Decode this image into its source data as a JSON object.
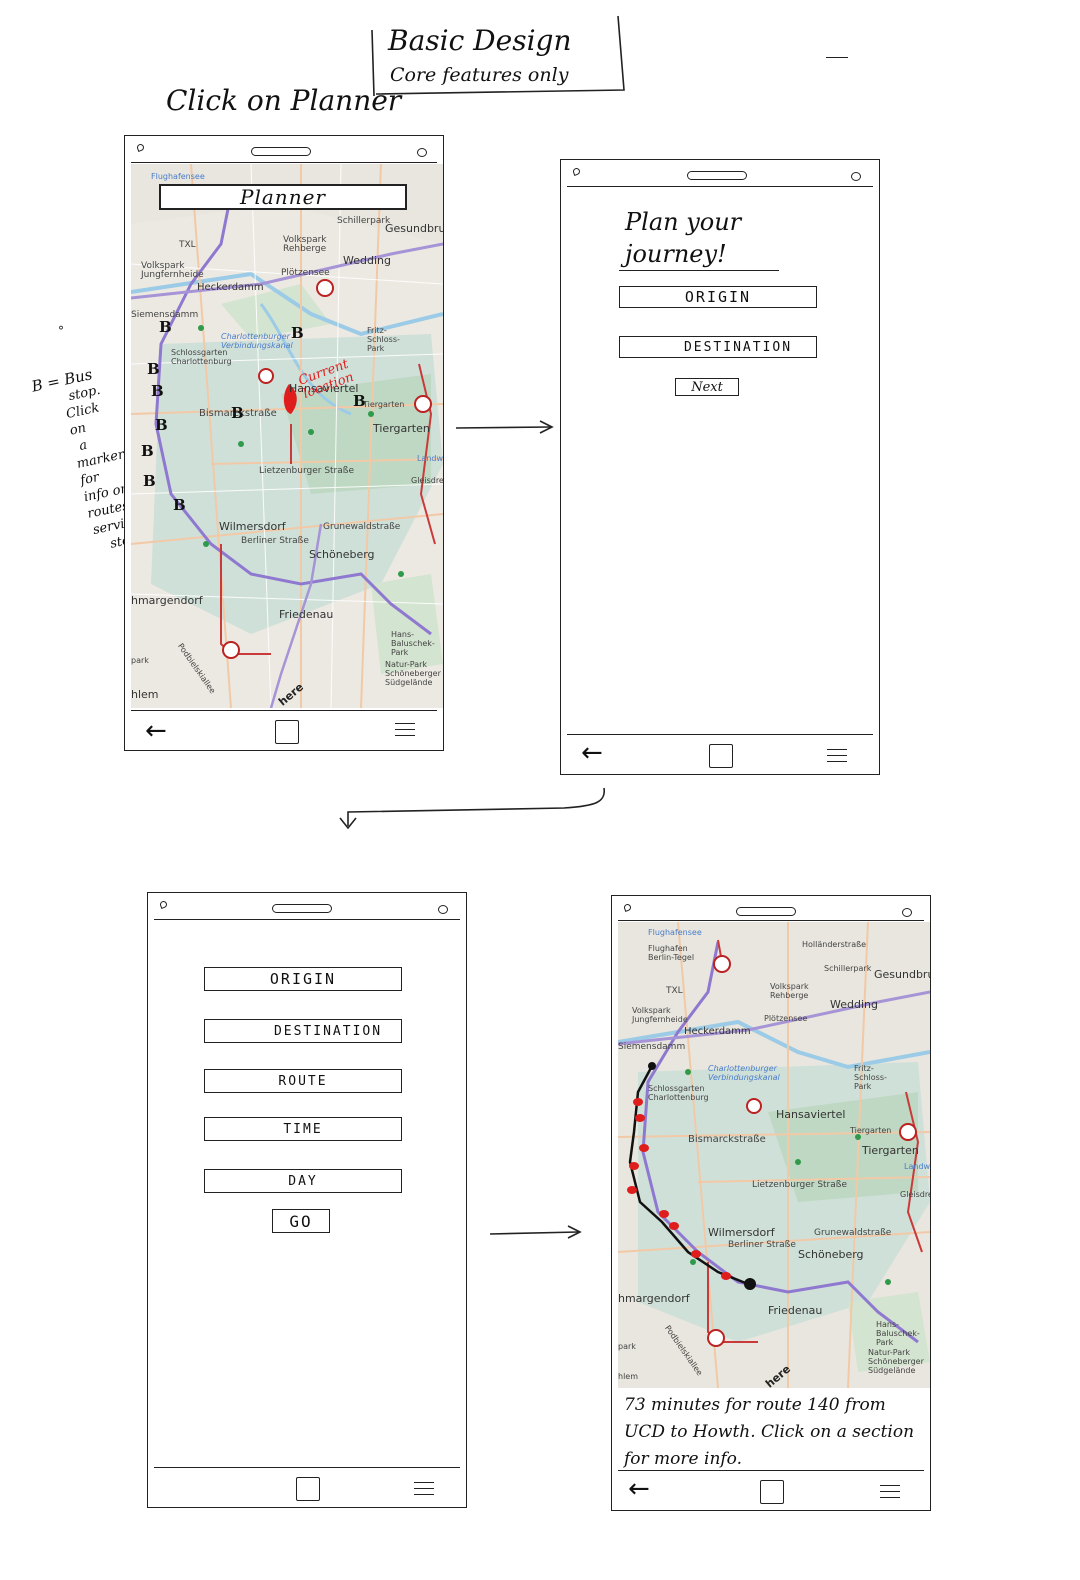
{
  "header": {
    "title_line1": "Basic Design",
    "title_line2": "Core features only",
    "instruction": "Click on Planner"
  },
  "side_note": {
    "lines": [
      "B = Bus",
      "stop.",
      "Click",
      "on",
      "a",
      "marker",
      "for",
      "info on",
      "routes",
      "serving",
      "stop"
    ]
  },
  "screen1": {
    "search_label": "Planner",
    "current_location_label": "Current location",
    "bus_stop_marker": "B",
    "map_labels": {
      "flughafensee": "Flughafensee",
      "schillerpark": "Schillerpark",
      "gesundbrunnen": "Gesundbru",
      "txl": "TXL",
      "volkspark_rehberge": "Volkspark Rehberge",
      "wedding": "Wedding",
      "volkspark_jungfernheide": "Volkspark Jungfernheide",
      "heckerdamm": "Heckerdamm",
      "plotzensee": "Plötzensee",
      "siemensdamm": "Siemensdamm",
      "charlottenburger": "Charlottenburger Verbindungskanal",
      "fritz_schloss": "Fritz-Schloss-Park",
      "schlossgarten": "Schlossgarten Charlottenburg",
      "hansaviertel": "Hansaviertel",
      "bismarckstrasse": "Bismarckstraße",
      "tiergarten_small": "Tiergarten",
      "tiergarten": "Tiergarten",
      "landwehr": "Landwe",
      "lietzenburger": "Lietzenburger Straße",
      "gleisdreieck": "Gleisdre",
      "wilmersdorf": "Wilmersdorf",
      "berliner_strasse": "Berliner Straße",
      "grunewaldstrasse": "Grunewaldstraße",
      "schoneberg": "Schöneberg",
      "hmargendorf": "hmargendorf",
      "friedenau": "Friedenau",
      "hans_baluschek": "Hans-Baluschek-Park",
      "natur_park": "Natur-Park Schöneberger Südgelände",
      "podbielskiallee": "Podbielskiallee",
      "here": "here",
      "dahlem": "hlem",
      "park": "park"
    }
  },
  "screen2": {
    "heading": "Plan your journey!",
    "origin_label": "ORIGIN",
    "destination_label": "DESTINATION",
    "next_label": "Next"
  },
  "screen3": {
    "origin_label": "ORIGIN",
    "destination_label": "DESTINATION",
    "route_label": "ROUTE",
    "time_label": "TIME",
    "day_label": "DAY",
    "go_label": "GO"
  },
  "screen4": {
    "summary": "73 minutes for route 140 from UCD to Howth. Click on a section for more info.",
    "map_labels": {
      "flughafensee": "Flughafensee",
      "flughafen_tegel": "Flughafen Berlin-Tegel",
      "hollander": "Holländerstraße",
      "schillerpark": "Schillerpark",
      "gesundbrunnen": "Gesundbru"
    }
  },
  "nav": {
    "back_icon": "←"
  },
  "colors": {
    "ink": "#111111",
    "route_red": "#d21f2b",
    "transit_purple": "#7d5bc1",
    "map_green": "#c9ddc8",
    "map_water": "#a9d3ea"
  }
}
